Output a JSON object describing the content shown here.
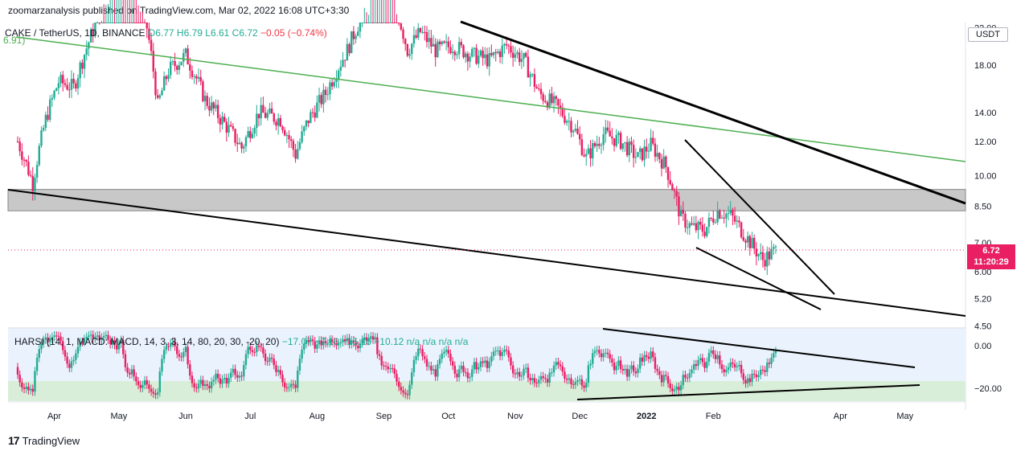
{
  "header": {
    "publisher_line": "zoomarzanalysis published on TradingView.com, Mar 02, 2022 16:08 UTC+3:30"
  },
  "legend": {
    "symbol": "CAKE / TetherUS, 1D, BINANCE",
    "open": "O6.77",
    "high": "H6.79",
    "low": "L6.61",
    "close": "C6.72",
    "change": "−0.05 (−0.74%)",
    "ma_value": "6.91)"
  },
  "currency_badge": "USDT",
  "last_price": {
    "value": "6.72",
    "countdown": "11:20:29"
  },
  "indicator_legend": {
    "name": "HARSI (14, 1, MACD: MACD, 14, 3, 3, 14, 80, 20, 30, -20, 20)",
    "values": "−17.07  −7.16  −15.16  −10.12  n/a  n/a  n/a  n/a"
  },
  "footer": {
    "brand": "TradingView"
  },
  "colors": {
    "up": "#22ab94",
    "down": "#e91e63",
    "trend_green": "#4caf50",
    "zone_grey": "#c8c8c8",
    "ind_bg_blue": "#eaf3fd",
    "ind_bg_green": "#d9eed8"
  },
  "chart_data": [
    {
      "type": "candlestick",
      "title": "CAKE / TetherUS, 1D, BINANCE",
      "y_scale": "log",
      "y_ticks": [
        "22.00",
        "18.00",
        "14.00",
        "12.00",
        "10.00",
        "8.50",
        "7.00",
        "6.00",
        "5.20",
        "4.50"
      ],
      "y_tick_values": [
        22,
        18,
        14,
        12,
        10,
        8.5,
        7,
        6,
        5.2,
        4.5
      ],
      "x_ticks": [
        "Apr",
        "May",
        "Jun",
        "Jul",
        "Aug",
        "Sep",
        "Oct",
        "Nov",
        "Dec",
        "2022",
        "Feb",
        "Apr",
        "May"
      ],
      "price_path": {
        "dates": [
          "2021-03-15",
          "2021-03-22",
          "2021-03-28",
          "2021-04-03",
          "2021-04-10",
          "2021-04-18",
          "2021-04-25",
          "2021-05-02",
          "2021-05-08",
          "2021-05-14",
          "2021-05-19",
          "2021-05-24",
          "2021-06-01",
          "2021-06-10",
          "2021-06-20",
          "2021-06-27",
          "2021-07-05",
          "2021-07-15",
          "2021-07-22",
          "2021-07-28",
          "2021-08-05",
          "2021-08-15",
          "2021-08-22",
          "2021-08-28",
          "2021-09-05",
          "2021-09-12",
          "2021-09-18",
          "2021-09-25",
          "2021-10-03",
          "2021-10-12",
          "2021-10-20",
          "2021-10-28",
          "2021-11-05",
          "2021-11-12",
          "2021-11-20",
          "2021-11-28",
          "2021-12-04",
          "2021-12-12",
          "2021-12-20",
          "2021-12-28",
          "2022-01-03",
          "2022-01-10",
          "2022-01-17",
          "2022-01-22",
          "2022-01-28",
          "2022-02-03",
          "2022-02-09",
          "2022-02-14",
          "2022-02-20",
          "2022-02-24",
          "2022-03-02"
        ],
        "close": [
          12.0,
          9.6,
          13.5,
          16.5,
          16.0,
          21.0,
          26.0,
          31.0,
          28.0,
          22.0,
          14.5,
          17.5,
          19.0,
          15.0,
          13.0,
          11.6,
          14.0,
          13.5,
          11.2,
          13.5,
          15.5,
          19.5,
          23.5,
          29.0,
          26.0,
          19.5,
          21.5,
          19.5,
          20.0,
          19.0,
          18.5,
          20.0,
          18.5,
          15.5,
          14.5,
          13.0,
          11.0,
          12.5,
          12.0,
          11.0,
          11.8,
          10.5,
          8.0,
          7.6,
          7.5,
          8.3,
          8.1,
          7.5,
          6.8,
          6.4,
          6.72
        ]
      },
      "overlays": {
        "supply_zone": {
          "from": 8.3,
          "to": 9.3
        },
        "green_trendline": "descending",
        "falling_wedge": "upper and lower black trendlines converging"
      }
    },
    {
      "type": "oscillator",
      "title": "HARSI",
      "y_ticks": [
        "0.00",
        "−20.00"
      ],
      "y_tick_values": [
        0,
        -20
      ],
      "bands": {
        "upper": 20,
        "lower": -20
      },
      "trendlines": [
        "descending resistance",
        "ascending support"
      ]
    }
  ]
}
